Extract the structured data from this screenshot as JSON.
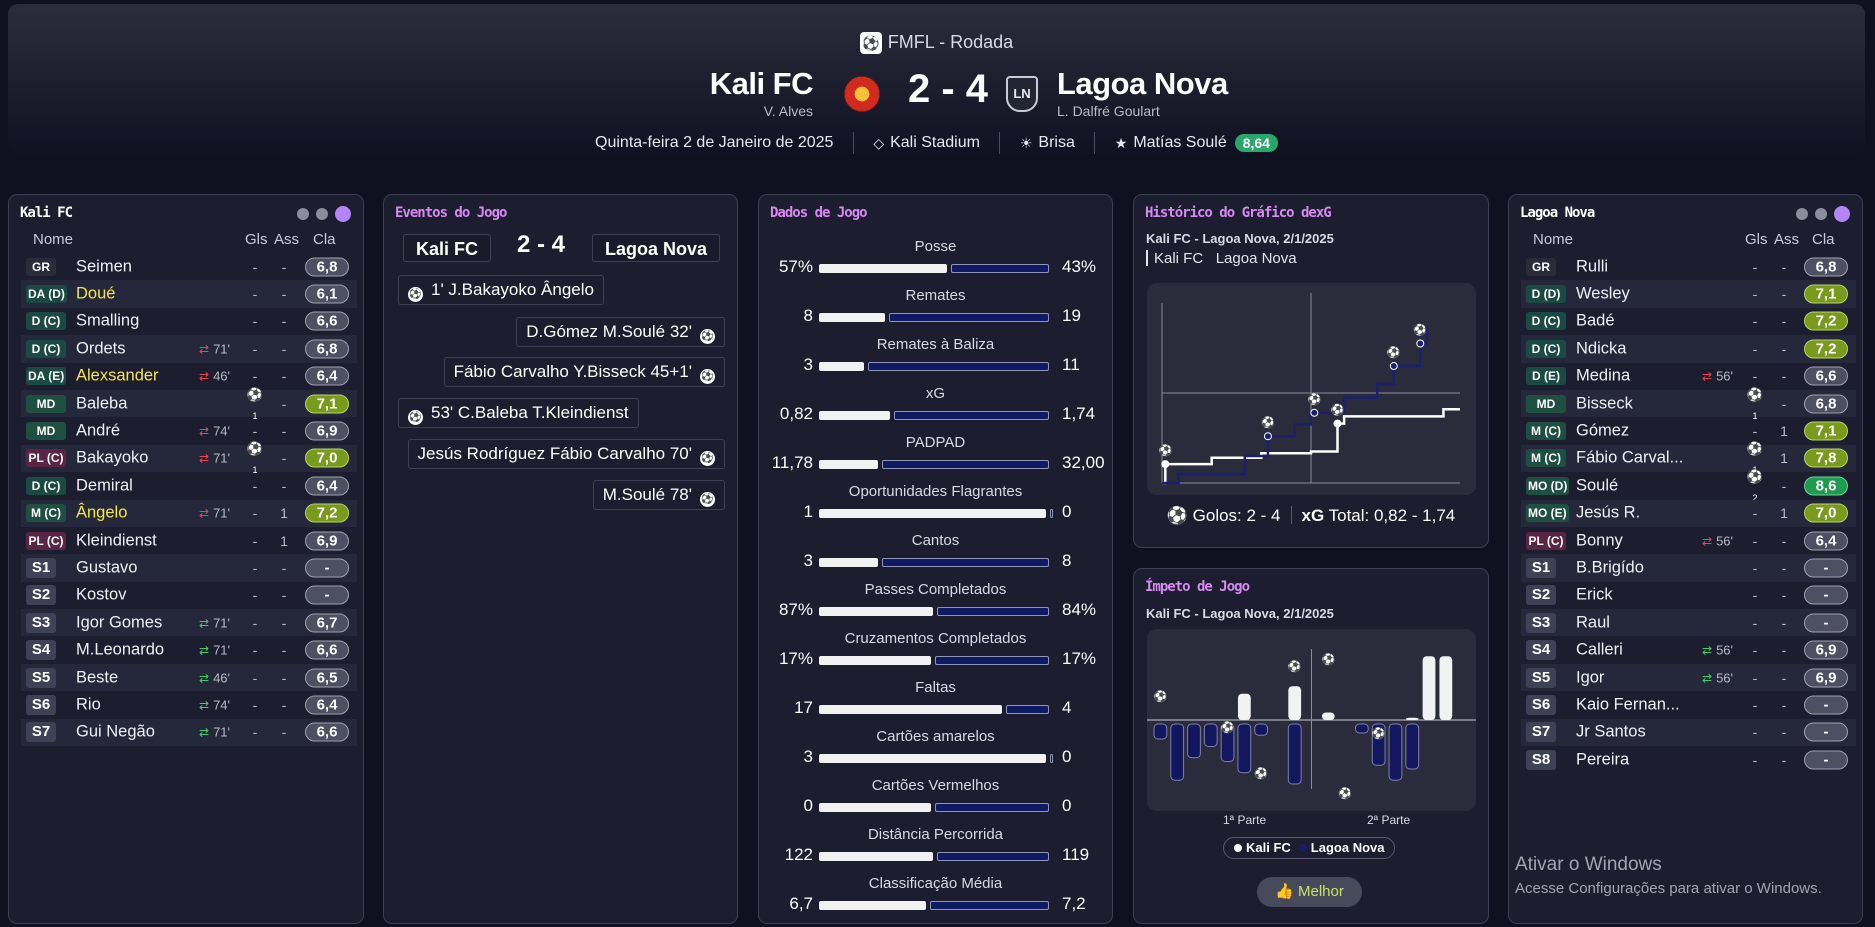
{
  "header": {
    "competition": "FMFL - Rodada",
    "home": {
      "name": "Kali FC",
      "manager": "V. Alves"
    },
    "away": {
      "name": "Lagoa Nova",
      "manager": "L. Dalfré Goulart",
      "crest_text": "LN"
    },
    "score": "2 - 4",
    "date": "Quinta-feira 2 de Janeiro de 2025",
    "stadium": "Kali Stadium",
    "weather": "Brisa",
    "potm": "Matías Soulé",
    "potm_rating": "8,64",
    "colors": {
      "potm_badge": "#2aa86b"
    }
  },
  "columns": {
    "name": "Nome",
    "goals": "Gls",
    "assists": "Ass",
    "rating": "Cla"
  },
  "home_lineup": {
    "title": "Kali FC",
    "players": [
      {
        "pos": "GR",
        "name": "Seimen",
        "gls": "-",
        "ass": "-",
        "rating": "6,8"
      },
      {
        "pos": "DA (D)",
        "name": "Doué",
        "gls": "-",
        "ass": "-",
        "rating": "6,1"
      },
      {
        "pos": "D (C)",
        "name": "Smalling",
        "gls": "-",
        "ass": "-",
        "rating": "6,6"
      },
      {
        "pos": "D (C)",
        "name": "Ordets",
        "sub": "71'",
        "gls": "-",
        "ass": "-",
        "rating": "6,8"
      },
      {
        "pos": "DA (E)",
        "name": "Alexsander",
        "sub": "46'",
        "gls": "-",
        "ass": "-",
        "rating": "6,4"
      },
      {
        "pos": "MD",
        "name": "Baleba",
        "goals_icon": "1",
        "ass": "-",
        "rating": "7,1"
      },
      {
        "pos": "MD",
        "name": "André",
        "sub": "74'",
        "gls": "-",
        "ass": "-",
        "rating": "6,9"
      },
      {
        "pos": "PL (C)",
        "name": "Bakayoko",
        "sub": "71'",
        "goals_icon": "1",
        "ass": "-",
        "rating": "7,0"
      },
      {
        "pos": "D (C)",
        "name": "Demiral",
        "gls": "-",
        "ass": "-",
        "rating": "6,4"
      },
      {
        "pos": "M (C)",
        "name": "Ângelo",
        "sub": "71'",
        "gls": "-",
        "ass": "1",
        "rating": "7,2"
      },
      {
        "pos": "PL (C)",
        "name": "Kleindienst",
        "gls": "-",
        "ass": "1",
        "rating": "6,9"
      },
      {
        "pos": "S1",
        "name": "Gustavo",
        "gls": "-",
        "ass": "-",
        "rating": "-"
      },
      {
        "pos": "S2",
        "name": "Kostov",
        "gls": "-",
        "ass": "-",
        "rating": "-"
      },
      {
        "pos": "S3",
        "name": "Igor Gomes",
        "sub": "71'",
        "gls": "-",
        "ass": "-",
        "rating": "6,7"
      },
      {
        "pos": "S4",
        "name": "M.Leonardo",
        "sub": "71'",
        "gls": "-",
        "ass": "-",
        "rating": "6,6"
      },
      {
        "pos": "S5",
        "name": "Beste",
        "sub": "46'",
        "gls": "-",
        "ass": "-",
        "rating": "6,5"
      },
      {
        "pos": "S6",
        "name": "Rio",
        "sub": "74'",
        "gls": "-",
        "ass": "-",
        "rating": "6,4"
      },
      {
        "pos": "S7",
        "name": "Gui Negão",
        "sub": "71'",
        "gls": "-",
        "ass": "-",
        "rating": "6,6"
      }
    ]
  },
  "away_lineup": {
    "title": "Lagoa Nova",
    "players": [
      {
        "pos": "GR",
        "name": "Rulli",
        "gls": "-",
        "ass": "-",
        "rating": "6,8"
      },
      {
        "pos": "D (D)",
        "name": "Wesley",
        "gls": "-",
        "ass": "-",
        "rating": "7,1"
      },
      {
        "pos": "D (C)",
        "name": "Badé",
        "gls": "-",
        "ass": "-",
        "rating": "7,2"
      },
      {
        "pos": "D (C)",
        "name": "Ndicka",
        "gls": "-",
        "ass": "-",
        "rating": "7,2"
      },
      {
        "pos": "D (E)",
        "name": "Medina",
        "sub": "56'",
        "gls": "-",
        "ass": "-",
        "rating": "6,6"
      },
      {
        "pos": "MD",
        "name": "Bisseck",
        "goals_icon": "1",
        "ass": "-",
        "rating": "6,8"
      },
      {
        "pos": "M (C)",
        "name": "Gómez",
        "gls": "-",
        "ass": "1",
        "rating": "7,1"
      },
      {
        "pos": "M (C)",
        "name": "Fábio Carval...",
        "goals_icon": "1",
        "ass": "1",
        "rating": "7,8"
      },
      {
        "pos": "MO (D)",
        "name": "Soulé",
        "goals_icon": "2",
        "ass": "-",
        "rating": "8,6"
      },
      {
        "pos": "MO (E)",
        "name": "Jesús R.",
        "gls": "-",
        "ass": "1",
        "rating": "7,0"
      },
      {
        "pos": "PL (C)",
        "name": "Bonny",
        "sub": "56'",
        "gls": "-",
        "ass": "-",
        "rating": "6,4"
      },
      {
        "pos": "S1",
        "name": "B.Brigído",
        "gls": "-",
        "ass": "-",
        "rating": "-"
      },
      {
        "pos": "S2",
        "name": "Erick",
        "gls": "-",
        "ass": "-",
        "rating": "-"
      },
      {
        "pos": "S3",
        "name": "Raul",
        "gls": "-",
        "ass": "-",
        "rating": "-"
      },
      {
        "pos": "S4",
        "name": "Calleri",
        "sub": "56'",
        "gls": "-",
        "ass": "-",
        "rating": "6,9"
      },
      {
        "pos": "S5",
        "name": "Igor",
        "sub": "56'",
        "gls": "-",
        "ass": "-",
        "rating": "6,9"
      },
      {
        "pos": "S6",
        "name": "Kaio Fernan...",
        "gls": "-",
        "ass": "-",
        "rating": "-"
      },
      {
        "pos": "S7",
        "name": "Jr Santos",
        "gls": "-",
        "ass": "-",
        "rating": "-"
      },
      {
        "pos": "S8",
        "name": "Pereira",
        "gls": "-",
        "ass": "-",
        "rating": "-"
      }
    ]
  },
  "events": {
    "title": "Eventos do Jogo",
    "home": "Kali FC",
    "away": "Lagoa Nova",
    "score": "2 - 4",
    "items": [
      {
        "side": "home",
        "text": "1' J.Bakayoko Ângelo"
      },
      {
        "side": "away",
        "text": "D.Gómez M.Soulé 32'"
      },
      {
        "side": "away",
        "text": "Fábio Carvalho Y.Bisseck 45+1'"
      },
      {
        "side": "home",
        "text": "53' C.Baleba T.Kleindienst"
      },
      {
        "side": "away",
        "text": "Jesús Rodríguez Fábio Carvalho 70'"
      },
      {
        "side": "away",
        "text": "M.Soulé 78'"
      }
    ]
  },
  "stats": {
    "title": "Dados de Jogo",
    "items": [
      {
        "label": "Posse",
        "home": "57%",
        "away": "43%",
        "share": 0.57
      },
      {
        "label": "Remates",
        "home": "8",
        "away": "19",
        "share": 0.3
      },
      {
        "label": "Remates à Baliza",
        "home": "3",
        "away": "11",
        "share": 0.21
      },
      {
        "label": "xG",
        "home": "0,82",
        "away": "1,74",
        "share": 0.32
      },
      {
        "label": "PADPAD",
        "home": "11,78",
        "away": "32,00",
        "share": 0.27
      },
      {
        "label": "Oportunidades Flagrantes",
        "home": "1",
        "away": "0",
        "share": 1
      },
      {
        "label": "Cantos",
        "home": "3",
        "away": "8",
        "share": 0.27
      },
      {
        "label": "Passes Completados",
        "home": "87%",
        "away": "84%",
        "share": 0.51
      },
      {
        "label": "Cruzamentos Completados",
        "home": "17%",
        "away": "17%",
        "share": 0.5
      },
      {
        "label": "Faltas",
        "home": "17",
        "away": "4",
        "share": 0.81
      },
      {
        "label": "Cartões amarelos",
        "home": "3",
        "away": "0",
        "share": 1
      },
      {
        "label": "Cartões Vermelhos",
        "home": "0",
        "away": "0",
        "share": 0.5
      },
      {
        "label": "Distância Percorrida",
        "home": "122",
        "away": "119",
        "share": 0.51
      },
      {
        "label": "Classificação Média",
        "home": "6,7",
        "away": "7,2",
        "share": 0.48
      }
    ]
  },
  "xg_chart": {
    "title": "Histórico do Gráfico dexG",
    "subtitle": "Kali FC - Lagoa Nova, 2/1/2025",
    "legend_home": "Kali FC",
    "legend_away": "Lagoa Nova",
    "goals_label": "Golos: 2 - 4",
    "xg_label": "xG",
    "total_label": "Total: 0,82 - 1,74"
  },
  "momentum": {
    "title": "Ímpeto de Jogo",
    "subtitle": "Kali FC - Lagoa Nova, 2/1/2025",
    "half1": "1ª Parte",
    "half2": "2ª Parte",
    "legend_home": "Kali FC",
    "legend_away": "Lagoa Nova",
    "better_label": "Melhor"
  },
  "watermark": {
    "line1": "Ativar o Windows",
    "line2": "Acesse Configurações para ativar o Windows."
  },
  "chart_data": [
    {
      "type": "line",
      "title": "Histórico do Gráfico dexG",
      "series": [
        {
          "name": "Kali FC",
          "x": [
            0,
            1,
            15,
            30,
            45,
            53,
            55,
            85,
            90
          ],
          "y": [
            0,
            0.21,
            0.28,
            0.33,
            0.35,
            0.66,
            0.74,
            0.82,
            0.82
          ]
        },
        {
          "name": "Lagoa Nova",
          "x": [
            0,
            5,
            25,
            32,
            40,
            45,
            55,
            65,
            70,
            78,
            80
          ],
          "y": [
            0,
            0.1,
            0.3,
            0.52,
            0.65,
            0.78,
            0.95,
            1.1,
            1.3,
            1.55,
            1.74
          ]
        }
      ],
      "goals": [
        {
          "team": "Kali FC",
          "minute": 1
        },
        {
          "team": "Lagoa Nova",
          "minute": 32
        },
        {
          "team": "Lagoa Nova",
          "minute": 46
        },
        {
          "team": "Kali FC",
          "minute": 53
        },
        {
          "team": "Lagoa Nova",
          "minute": 70
        },
        {
          "team": "Lagoa Nova",
          "minute": 78
        }
      ],
      "xlim": [
        0,
        90
      ]
    },
    {
      "type": "bar",
      "title": "Ímpeto de Jogo",
      "categories": [
        "1",
        "5",
        "10",
        "15",
        "20",
        "25",
        "30",
        "35",
        "40",
        "45",
        "50",
        "55",
        "60",
        "65",
        "70",
        "75",
        "80",
        "85",
        "90"
      ],
      "series": [
        {
          "name": "Kali FC",
          "values": [
            0,
            0,
            0,
            0,
            0,
            0.35,
            0,
            0,
            0.45,
            0,
            0.1,
            0,
            0,
            0,
            0,
            0.03,
            0.85,
            0.85,
            0
          ]
        },
        {
          "name": "Lagoa Nova",
          "values": [
            0.2,
            0.75,
            0.45,
            0.3,
            0.5,
            0.65,
            0.15,
            0,
            0.8,
            0,
            0,
            0,
            0.12,
            0.55,
            0.75,
            0.6,
            0,
            0,
            0
          ]
        }
      ]
    }
  ]
}
